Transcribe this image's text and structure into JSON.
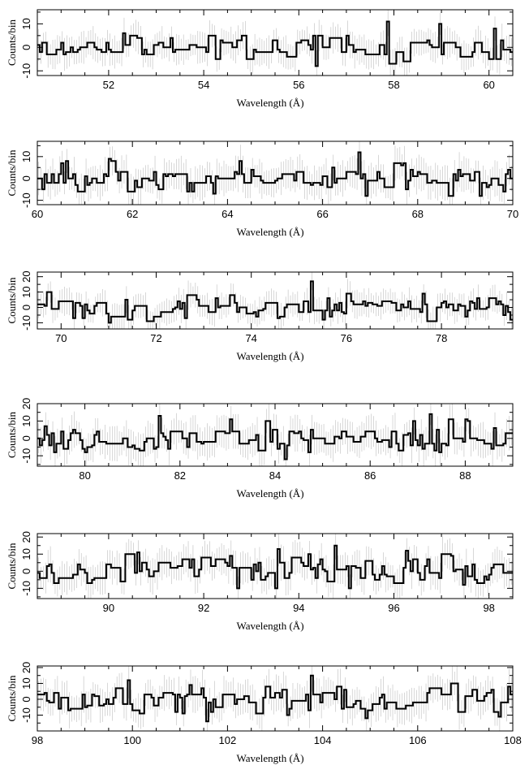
{
  "chart_data": [
    {
      "type": "line",
      "step": true,
      "xlabel": "Wavelength (Å)",
      "ylabel": "Counts/bin",
      "xlim": [
        50.5,
        60.5
      ],
      "ylim": [
        -12,
        16
      ],
      "xticks": [
        52,
        54,
        56,
        58,
        60
      ],
      "yticks": [
        -10,
        0,
        10
      ],
      "highlights": [
        [
          56.4,
          -8
        ],
        [
          57.9,
          11
        ],
        [
          58.95,
          10
        ],
        [
          60.1,
          8
        ]
      ],
      "seed": 11,
      "sigma": 3
    },
    {
      "type": "line",
      "step": true,
      "xlabel": "Wavelength (Å)",
      "ylabel": "Counts/bin",
      "xlim": [
        60,
        70
      ],
      "ylim": [
        -12,
        17
      ],
      "xticks": [
        60,
        62,
        64,
        66,
        68,
        70
      ],
      "yticks": [
        -10,
        0,
        10
      ],
      "highlights": [
        [
          61.5,
          9
        ],
        [
          64.3,
          8
        ],
        [
          66.8,
          12
        ],
        [
          66.9,
          -8
        ]
      ],
      "seed": 23,
      "sigma": 3.5
    },
    {
      "type": "line",
      "step": true,
      "xlabel": "Wavelength (Å)",
      "ylabel": "Counts/bin",
      "xlim": [
        69.5,
        79.5
      ],
      "ylim": [
        -14,
        23
      ],
      "xticks": [
        70,
        72,
        74,
        76,
        78
      ],
      "yticks": [
        -10,
        0,
        10,
        20
      ],
      "highlights": [
        [
          70.3,
          -7
        ],
        [
          71.0,
          -10
        ],
        [
          75.3,
          17
        ],
        [
          75.5,
          -8
        ],
        [
          79.45,
          -8
        ]
      ],
      "seed": 37,
      "sigma": 4
    },
    {
      "type": "line",
      "step": true,
      "xlabel": "Wavelength (Å)",
      "ylabel": "Counts/bin",
      "xlim": [
        79,
        89
      ],
      "ylim": [
        -16,
        20
      ],
      "xticks": [
        80,
        82,
        84,
        86,
        88
      ],
      "yticks": [
        -10,
        0,
        10,
        20
      ],
      "highlights": [
        [
          81.6,
          13
        ],
        [
          83.1,
          11
        ],
        [
          84.2,
          -12
        ],
        [
          86.9,
          10
        ],
        [
          87.3,
          14
        ]
      ],
      "seed": 53,
      "sigma": 4.5
    },
    {
      "type": "line",
      "step": true,
      "xlabel": "Wavelength (Å)",
      "ylabel": "Counts/bin",
      "xlim": [
        88.5,
        98.5
      ],
      "ylim": [
        -16,
        22
      ],
      "xticks": [
        90,
        92,
        94,
        96,
        98
      ],
      "yticks": [
        -10,
        0,
        10,
        20
      ],
      "highlights": [
        [
          92.7,
          -10
        ],
        [
          93.6,
          13
        ],
        [
          94.8,
          15
        ],
        [
          95.1,
          -10
        ],
        [
          96.3,
          12
        ]
      ],
      "seed": 71,
      "sigma": 4.5
    },
    {
      "type": "line",
      "step": true,
      "xlabel": "Wavelength (Å)",
      "ylabel": "Counts/bin",
      "xlim": [
        98,
        108
      ],
      "ylim": [
        -20,
        21
      ],
      "xticks": [
        98,
        100,
        102,
        104,
        106,
        108
      ],
      "yticks": [
        -10,
        0,
        10,
        20
      ],
      "highlights": [
        [
          99.9,
          12
        ],
        [
          101.6,
          -14
        ],
        [
          103.8,
          15
        ],
        [
          104.9,
          -12
        ],
        [
          107.9,
          8
        ]
      ],
      "seed": 89,
      "sigma": 5
    }
  ]
}
